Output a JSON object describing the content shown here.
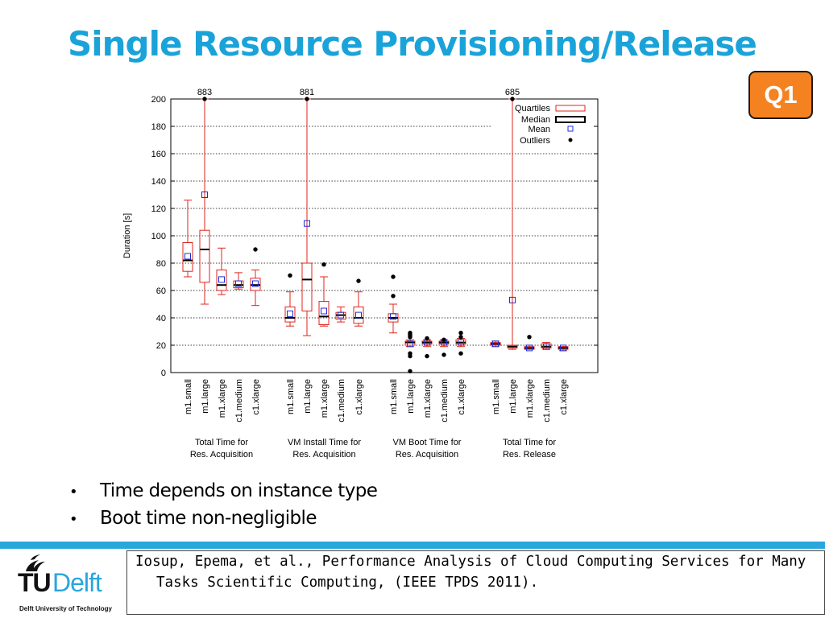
{
  "slide": {
    "title": "Single Resource Provisioning/Release",
    "badge": "Q1",
    "bullets": [
      "Time depends on instance type",
      "Boot time non-negligible"
    ],
    "citation": "Iosup, Epema, et al., Performance Analysis of Cloud Computing Services for Many Tasks Scientific Computing, (IEEE TPDS 2011).",
    "logo": {
      "tu": "TU",
      "delft": "Delft",
      "sub": "Delft University of Technology"
    },
    "colors": {
      "title": "#1aa3d9",
      "badge": "#f58220",
      "bar": "#29a6dc"
    }
  },
  "chart_data": {
    "type": "boxplot",
    "ylabel": "Duration [s]",
    "ylim": [
      0,
      200
    ],
    "yticks": [
      0,
      20,
      40,
      60,
      80,
      100,
      120,
      140,
      160,
      180,
      200
    ],
    "grid": "horizontal dotted",
    "legend": {
      "placement": "top-right",
      "entries": [
        "Quartiles",
        "Median",
        "Mean",
        "Outliers"
      ]
    },
    "groups": [
      {
        "label_lines": [
          "Total Time for",
          "Res. Acquisition"
        ],
        "boxes": [
          {
            "name": "m1.small",
            "whisker_low": 70,
            "q1": 74,
            "median": 82,
            "q3": 95,
            "whisker_high": 126,
            "mean": 85,
            "outliers": []
          },
          {
            "name": "m1.large",
            "whisker_low": 50,
            "q1": 66,
            "median": 90,
            "q3": 104,
            "whisker_high": 200,
            "mean": 130,
            "outliers": [
              200
            ],
            "max_label": "883"
          },
          {
            "name": "m1.xlarge",
            "whisker_low": 57,
            "q1": 60,
            "median": 64,
            "q3": 75,
            "whisker_high": 91,
            "mean": 68,
            "outliers": []
          },
          {
            "name": "c1.medium",
            "whisker_low": 61,
            "q1": 62,
            "median": 64,
            "q3": 67,
            "whisker_high": 73,
            "mean": 65,
            "outliers": []
          },
          {
            "name": "c1.xlarge",
            "whisker_low": 49,
            "q1": 60,
            "median": 64,
            "q3": 69,
            "whisker_high": 75,
            "mean": 65,
            "outliers": [
              90
            ]
          }
        ]
      },
      {
        "label_lines": [
          "VM Install Time for",
          "Res. Acquisition"
        ],
        "boxes": [
          {
            "name": "m1.small",
            "whisker_low": 34,
            "q1": 37,
            "median": 40,
            "q3": 48,
            "whisker_high": 59,
            "mean": 43,
            "outliers": [
              71
            ]
          },
          {
            "name": "m1.large",
            "whisker_low": 27,
            "q1": 45,
            "median": 68,
            "q3": 80,
            "whisker_high": 200,
            "mean": 109,
            "outliers": [
              200
            ],
            "max_label": "881"
          },
          {
            "name": "m1.xlarge",
            "whisker_low": 34,
            "q1": 35,
            "median": 41,
            "q3": 52,
            "whisker_high": 70,
            "mean": 45,
            "outliers": [
              79
            ]
          },
          {
            "name": "c1.medium",
            "whisker_low": 37,
            "q1": 39,
            "median": 42,
            "q3": 44,
            "whisker_high": 48,
            "mean": 42,
            "outliers": []
          },
          {
            "name": "c1.xlarge",
            "whisker_low": 34,
            "q1": 36,
            "median": 40,
            "q3": 48,
            "whisker_high": 59,
            "mean": 42,
            "outliers": [
              67
            ]
          }
        ]
      },
      {
        "label_lines": [
          "VM Boot Time for",
          "Res. Acquisition"
        ],
        "boxes": [
          {
            "name": "m1.small",
            "whisker_low": 29,
            "q1": 37,
            "median": 40,
            "q3": 43,
            "whisker_high": 50,
            "mean": 41,
            "outliers": [
              56,
              70
            ]
          },
          {
            "name": "m1.large",
            "whisker_low": 19,
            "q1": 20,
            "median": 22,
            "q3": 23,
            "whisker_high": 24,
            "mean": 21,
            "outliers": [
              1,
              12,
              14,
              26,
              27,
              28,
              29
            ]
          },
          {
            "name": "m1.xlarge",
            "whisker_low": 19,
            "q1": 21,
            "median": 22,
            "q3": 23,
            "whisker_high": 24,
            "mean": 22,
            "outliers": [
              12,
              25
            ]
          },
          {
            "name": "c1.medium",
            "whisker_low": 19,
            "q1": 21,
            "median": 22,
            "q3": 23,
            "whisker_high": 24,
            "mean": 22,
            "outliers": [
              13,
              24
            ]
          },
          {
            "name": "c1.xlarge",
            "whisker_low": 19,
            "q1": 21,
            "median": 22,
            "q3": 24,
            "whisker_high": 25,
            "mean": 22,
            "outliers": [
              14,
              26,
              29
            ]
          }
        ]
      },
      {
        "label_lines": [
          "Total Time for",
          "Res. Release"
        ],
        "boxes": [
          {
            "name": "m1.small",
            "whisker_low": 19,
            "q1": 20,
            "median": 21,
            "q3": 22,
            "whisker_high": 23,
            "mean": 21,
            "outliers": []
          },
          {
            "name": "m1.large",
            "whisker_low": 17,
            "q1": 18,
            "median": 19,
            "q3": 20,
            "whisker_high": 200,
            "mean": 53,
            "outliers": [
              200
            ],
            "max_label": "685"
          },
          {
            "name": "m1.xlarge",
            "whisker_low": 17,
            "q1": 17,
            "median": 18,
            "q3": 19,
            "whisker_high": 20,
            "mean": 18,
            "outliers": [
              26
            ]
          },
          {
            "name": "c1.medium",
            "whisker_low": 17,
            "q1": 18,
            "median": 19,
            "q3": 21,
            "whisker_high": 22,
            "mean": 19,
            "outliers": []
          },
          {
            "name": "c1.xlarge",
            "whisker_low": 16,
            "q1": 17,
            "median": 18,
            "q3": 19,
            "whisker_high": 19,
            "mean": 18,
            "outliers": []
          }
        ]
      }
    ]
  }
}
